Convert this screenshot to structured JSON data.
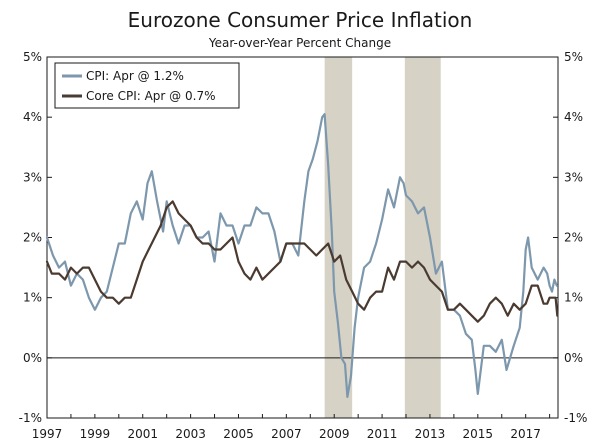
{
  "chart_data": {
    "type": "line",
    "title": "Eurozone Consumer Price Inflation",
    "subtitle": "Year-over-Year Percent Change",
    "xlabel": "",
    "ylabel": "",
    "xlim": [
      1997.0,
      2018.35
    ],
    "ylim": [
      -1,
      5
    ],
    "x_ticks": [
      "1997",
      "1999",
      "2001",
      "2003",
      "2005",
      "2007",
      "2009",
      "2011",
      "2013",
      "2015",
      "2017"
    ],
    "x_tick_values": [
      1997,
      1999,
      2001,
      2003,
      2005,
      2007,
      2009,
      2011,
      2013,
      2015,
      2017
    ],
    "y_ticks_left": [
      "5%",
      "4%",
      "3%",
      "2%",
      "1%",
      "0%",
      "-1%"
    ],
    "y_ticks_right": [
      "5%",
      "4%",
      "3%",
      "2%",
      "1%",
      "0%",
      "-1%"
    ],
    "y_tick_values": [
      5,
      4,
      3,
      2,
      1,
      0,
      -1
    ],
    "grid": false,
    "zero_line": true,
    "legend": {
      "placement": "top-left",
      "entries": [
        "CPI: Apr @ 1.2%",
        "Core CPI: Apr @ 0.7%"
      ]
    },
    "recession_shading": [
      {
        "start": 2008.6,
        "end": 2009.75
      },
      {
        "start": 2011.95,
        "end": 2013.45
      }
    ],
    "series": [
      {
        "name": "CPI: Apr @ 1.2%",
        "color": "#7d97ad",
        "points": [
          [
            1997.0,
            2.0
          ],
          [
            1997.25,
            1.7
          ],
          [
            1997.5,
            1.5
          ],
          [
            1997.75,
            1.6
          ],
          [
            1998.0,
            1.2
          ],
          [
            1998.25,
            1.4
          ],
          [
            1998.5,
            1.3
          ],
          [
            1998.75,
            1.0
          ],
          [
            1999.0,
            0.8
          ],
          [
            1999.25,
            1.0
          ],
          [
            1999.5,
            1.1
          ],
          [
            1999.75,
            1.5
          ],
          [
            2000.0,
            1.9
          ],
          [
            2000.25,
            1.9
          ],
          [
            2000.5,
            2.4
          ],
          [
            2000.75,
            2.6
          ],
          [
            2001.0,
            2.3
          ],
          [
            2001.2,
            2.9
          ],
          [
            2001.38,
            3.1
          ],
          [
            2001.6,
            2.6
          ],
          [
            2001.85,
            2.1
          ],
          [
            2002.0,
            2.6
          ],
          [
            2002.25,
            2.2
          ],
          [
            2002.5,
            1.9
          ],
          [
            2002.75,
            2.2
          ],
          [
            2003.0,
            2.2
          ],
          [
            2003.25,
            2.0
          ],
          [
            2003.5,
            2.0
          ],
          [
            2003.75,
            2.1
          ],
          [
            2004.0,
            1.6
          ],
          [
            2004.25,
            2.4
          ],
          [
            2004.5,
            2.2
          ],
          [
            2004.75,
            2.2
          ],
          [
            2005.0,
            1.9
          ],
          [
            2005.25,
            2.2
          ],
          [
            2005.5,
            2.2
          ],
          [
            2005.75,
            2.5
          ],
          [
            2006.0,
            2.4
          ],
          [
            2006.25,
            2.4
          ],
          [
            2006.5,
            2.1
          ],
          [
            2006.75,
            1.6
          ],
          [
            2007.0,
            1.9
          ],
          [
            2007.25,
            1.9
          ],
          [
            2007.5,
            1.7
          ],
          [
            2007.75,
            2.6
          ],
          [
            2007.92,
            3.1
          ],
          [
            2008.1,
            3.3
          ],
          [
            2008.3,
            3.6
          ],
          [
            2008.5,
            4.0
          ],
          [
            2008.6,
            4.05
          ],
          [
            2008.75,
            3.2
          ],
          [
            2008.9,
            2.1
          ],
          [
            2009.0,
            1.1
          ],
          [
            2009.15,
            0.6
          ],
          [
            2009.3,
            0.0
          ],
          [
            2009.45,
            -0.1
          ],
          [
            2009.55,
            -0.65
          ],
          [
            2009.7,
            -0.3
          ],
          [
            2009.85,
            0.5
          ],
          [
            2010.0,
            1.0
          ],
          [
            2010.25,
            1.5
          ],
          [
            2010.5,
            1.6
          ],
          [
            2010.75,
            1.9
          ],
          [
            2011.0,
            2.3
          ],
          [
            2011.25,
            2.8
          ],
          [
            2011.5,
            2.5
          ],
          [
            2011.75,
            3.0
          ],
          [
            2011.9,
            2.9
          ],
          [
            2012.0,
            2.7
          ],
          [
            2012.25,
            2.6
          ],
          [
            2012.5,
            2.4
          ],
          [
            2012.75,
            2.5
          ],
          [
            2013.0,
            2.0
          ],
          [
            2013.25,
            1.4
          ],
          [
            2013.5,
            1.6
          ],
          [
            2013.75,
            0.8
          ],
          [
            2014.0,
            0.8
          ],
          [
            2014.25,
            0.7
          ],
          [
            2014.5,
            0.4
          ],
          [
            2014.75,
            0.3
          ],
          [
            2014.9,
            -0.2
          ],
          [
            2015.0,
            -0.6
          ],
          [
            2015.25,
            0.2
          ],
          [
            2015.5,
            0.2
          ],
          [
            2015.75,
            0.1
          ],
          [
            2016.0,
            0.3
          ],
          [
            2016.2,
            -0.2
          ],
          [
            2016.5,
            0.2
          ],
          [
            2016.75,
            0.5
          ],
          [
            2016.9,
            1.1
          ],
          [
            2017.0,
            1.8
          ],
          [
            2017.1,
            2.0
          ],
          [
            2017.25,
            1.5
          ],
          [
            2017.5,
            1.3
          ],
          [
            2017.75,
            1.5
          ],
          [
            2017.9,
            1.4
          ],
          [
            2018.0,
            1.2
          ],
          [
            2018.1,
            1.1
          ],
          [
            2018.2,
            1.3
          ],
          [
            2018.3,
            1.2
          ]
        ]
      },
      {
        "name": "Core CPI: Apr @ 0.7%",
        "color": "#4a3a30",
        "points": [
          [
            1997.0,
            1.6
          ],
          [
            1997.2,
            1.4
          ],
          [
            1997.5,
            1.4
          ],
          [
            1997.75,
            1.3
          ],
          [
            1998.0,
            1.5
          ],
          [
            1998.25,
            1.4
          ],
          [
            1998.5,
            1.5
          ],
          [
            1998.75,
            1.5
          ],
          [
            1999.0,
            1.3
          ],
          [
            1999.25,
            1.1
          ],
          [
            1999.5,
            1.0
          ],
          [
            1999.75,
            1.0
          ],
          [
            2000.0,
            0.9
          ],
          [
            2000.25,
            1.0
          ],
          [
            2000.5,
            1.0
          ],
          [
            2000.75,
            1.3
          ],
          [
            2001.0,
            1.6
          ],
          [
            2001.25,
            1.8
          ],
          [
            2001.5,
            2.0
          ],
          [
            2001.75,
            2.2
          ],
          [
            2002.0,
            2.5
          ],
          [
            2002.25,
            2.6
          ],
          [
            2002.5,
            2.4
          ],
          [
            2002.75,
            2.3
          ],
          [
            2003.0,
            2.2
          ],
          [
            2003.25,
            2.0
          ],
          [
            2003.5,
            1.9
          ],
          [
            2003.75,
            1.9
          ],
          [
            2004.0,
            1.8
          ],
          [
            2004.25,
            1.8
          ],
          [
            2004.5,
            1.9
          ],
          [
            2004.75,
            2.0
          ],
          [
            2005.0,
            1.6
          ],
          [
            2005.25,
            1.4
          ],
          [
            2005.5,
            1.3
          ],
          [
            2005.75,
            1.5
          ],
          [
            2006.0,
            1.3
          ],
          [
            2006.25,
            1.4
          ],
          [
            2006.5,
            1.5
          ],
          [
            2006.75,
            1.6
          ],
          [
            2007.0,
            1.9
          ],
          [
            2007.25,
            1.9
          ],
          [
            2007.5,
            1.9
          ],
          [
            2007.75,
            1.9
          ],
          [
            2008.0,
            1.8
          ],
          [
            2008.25,
            1.7
          ],
          [
            2008.5,
            1.8
          ],
          [
            2008.75,
            1.9
          ],
          [
            2009.0,
            1.6
          ],
          [
            2009.25,
            1.7
          ],
          [
            2009.5,
            1.3
          ],
          [
            2009.75,
            1.1
          ],
          [
            2010.0,
            0.9
          ],
          [
            2010.25,
            0.8
          ],
          [
            2010.5,
            1.0
          ],
          [
            2010.75,
            1.1
          ],
          [
            2011.0,
            1.1
          ],
          [
            2011.25,
            1.5
          ],
          [
            2011.5,
            1.3
          ],
          [
            2011.75,
            1.6
          ],
          [
            2012.0,
            1.6
          ],
          [
            2012.25,
            1.5
          ],
          [
            2012.5,
            1.6
          ],
          [
            2012.75,
            1.5
          ],
          [
            2013.0,
            1.3
          ],
          [
            2013.25,
            1.2
          ],
          [
            2013.5,
            1.1
          ],
          [
            2013.75,
            0.8
          ],
          [
            2014.0,
            0.8
          ],
          [
            2014.25,
            0.9
          ],
          [
            2014.5,
            0.8
          ],
          [
            2014.75,
            0.7
          ],
          [
            2015.0,
            0.6
          ],
          [
            2015.25,
            0.7
          ],
          [
            2015.5,
            0.9
          ],
          [
            2015.75,
            1.0
          ],
          [
            2016.0,
            0.9
          ],
          [
            2016.25,
            0.7
          ],
          [
            2016.5,
            0.9
          ],
          [
            2016.75,
            0.8
          ],
          [
            2017.0,
            0.9
          ],
          [
            2017.25,
            1.2
          ],
          [
            2017.5,
            1.2
          ],
          [
            2017.75,
            0.9
          ],
          [
            2017.9,
            0.9
          ],
          [
            2018.0,
            1.0
          ],
          [
            2018.15,
            1.0
          ],
          [
            2018.25,
            1.0
          ],
          [
            2018.32,
            0.7
          ]
        ]
      }
    ]
  }
}
